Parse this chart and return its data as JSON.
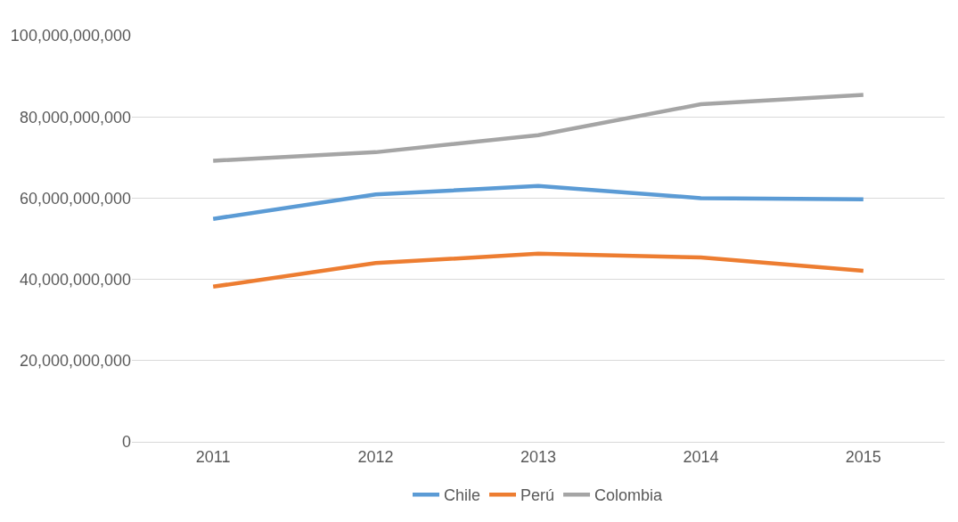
{
  "chart_data": {
    "type": "line",
    "categories": [
      "2011",
      "2012",
      "2013",
      "2014",
      "2015"
    ],
    "series": [
      {
        "name": "Chile",
        "color": "#5b9bd5",
        "values": [
          54900000000,
          60900000000,
          63000000000,
          60000000000,
          59700000000
        ]
      },
      {
        "name": "Perú",
        "color": "#ed7d31",
        "values": [
          38200000000,
          44000000000,
          46300000000,
          45400000000,
          42100000000
        ]
      },
      {
        "name": "Colombia",
        "color": "#a5a5a5",
        "values": [
          69200000000,
          71300000000,
          75500000000,
          83100000000,
          85400000000
        ]
      }
    ],
    "ylim": [
      0,
      100000000000
    ],
    "yticks": [
      {
        "value": 0,
        "label": "0"
      },
      {
        "value": 20000000000,
        "label": "20,000,000,000"
      },
      {
        "value": 40000000000,
        "label": "40,000,000,000"
      },
      {
        "value": 60000000000,
        "label": "60,000,000,000"
      },
      {
        "value": 80000000000,
        "label": "80,000,000,000"
      },
      {
        "value": 100000000000,
        "label": "100,000,000,000"
      }
    ],
    "grid": "y",
    "legend": "bottom",
    "marker": "none",
    "line_style": "solid"
  }
}
